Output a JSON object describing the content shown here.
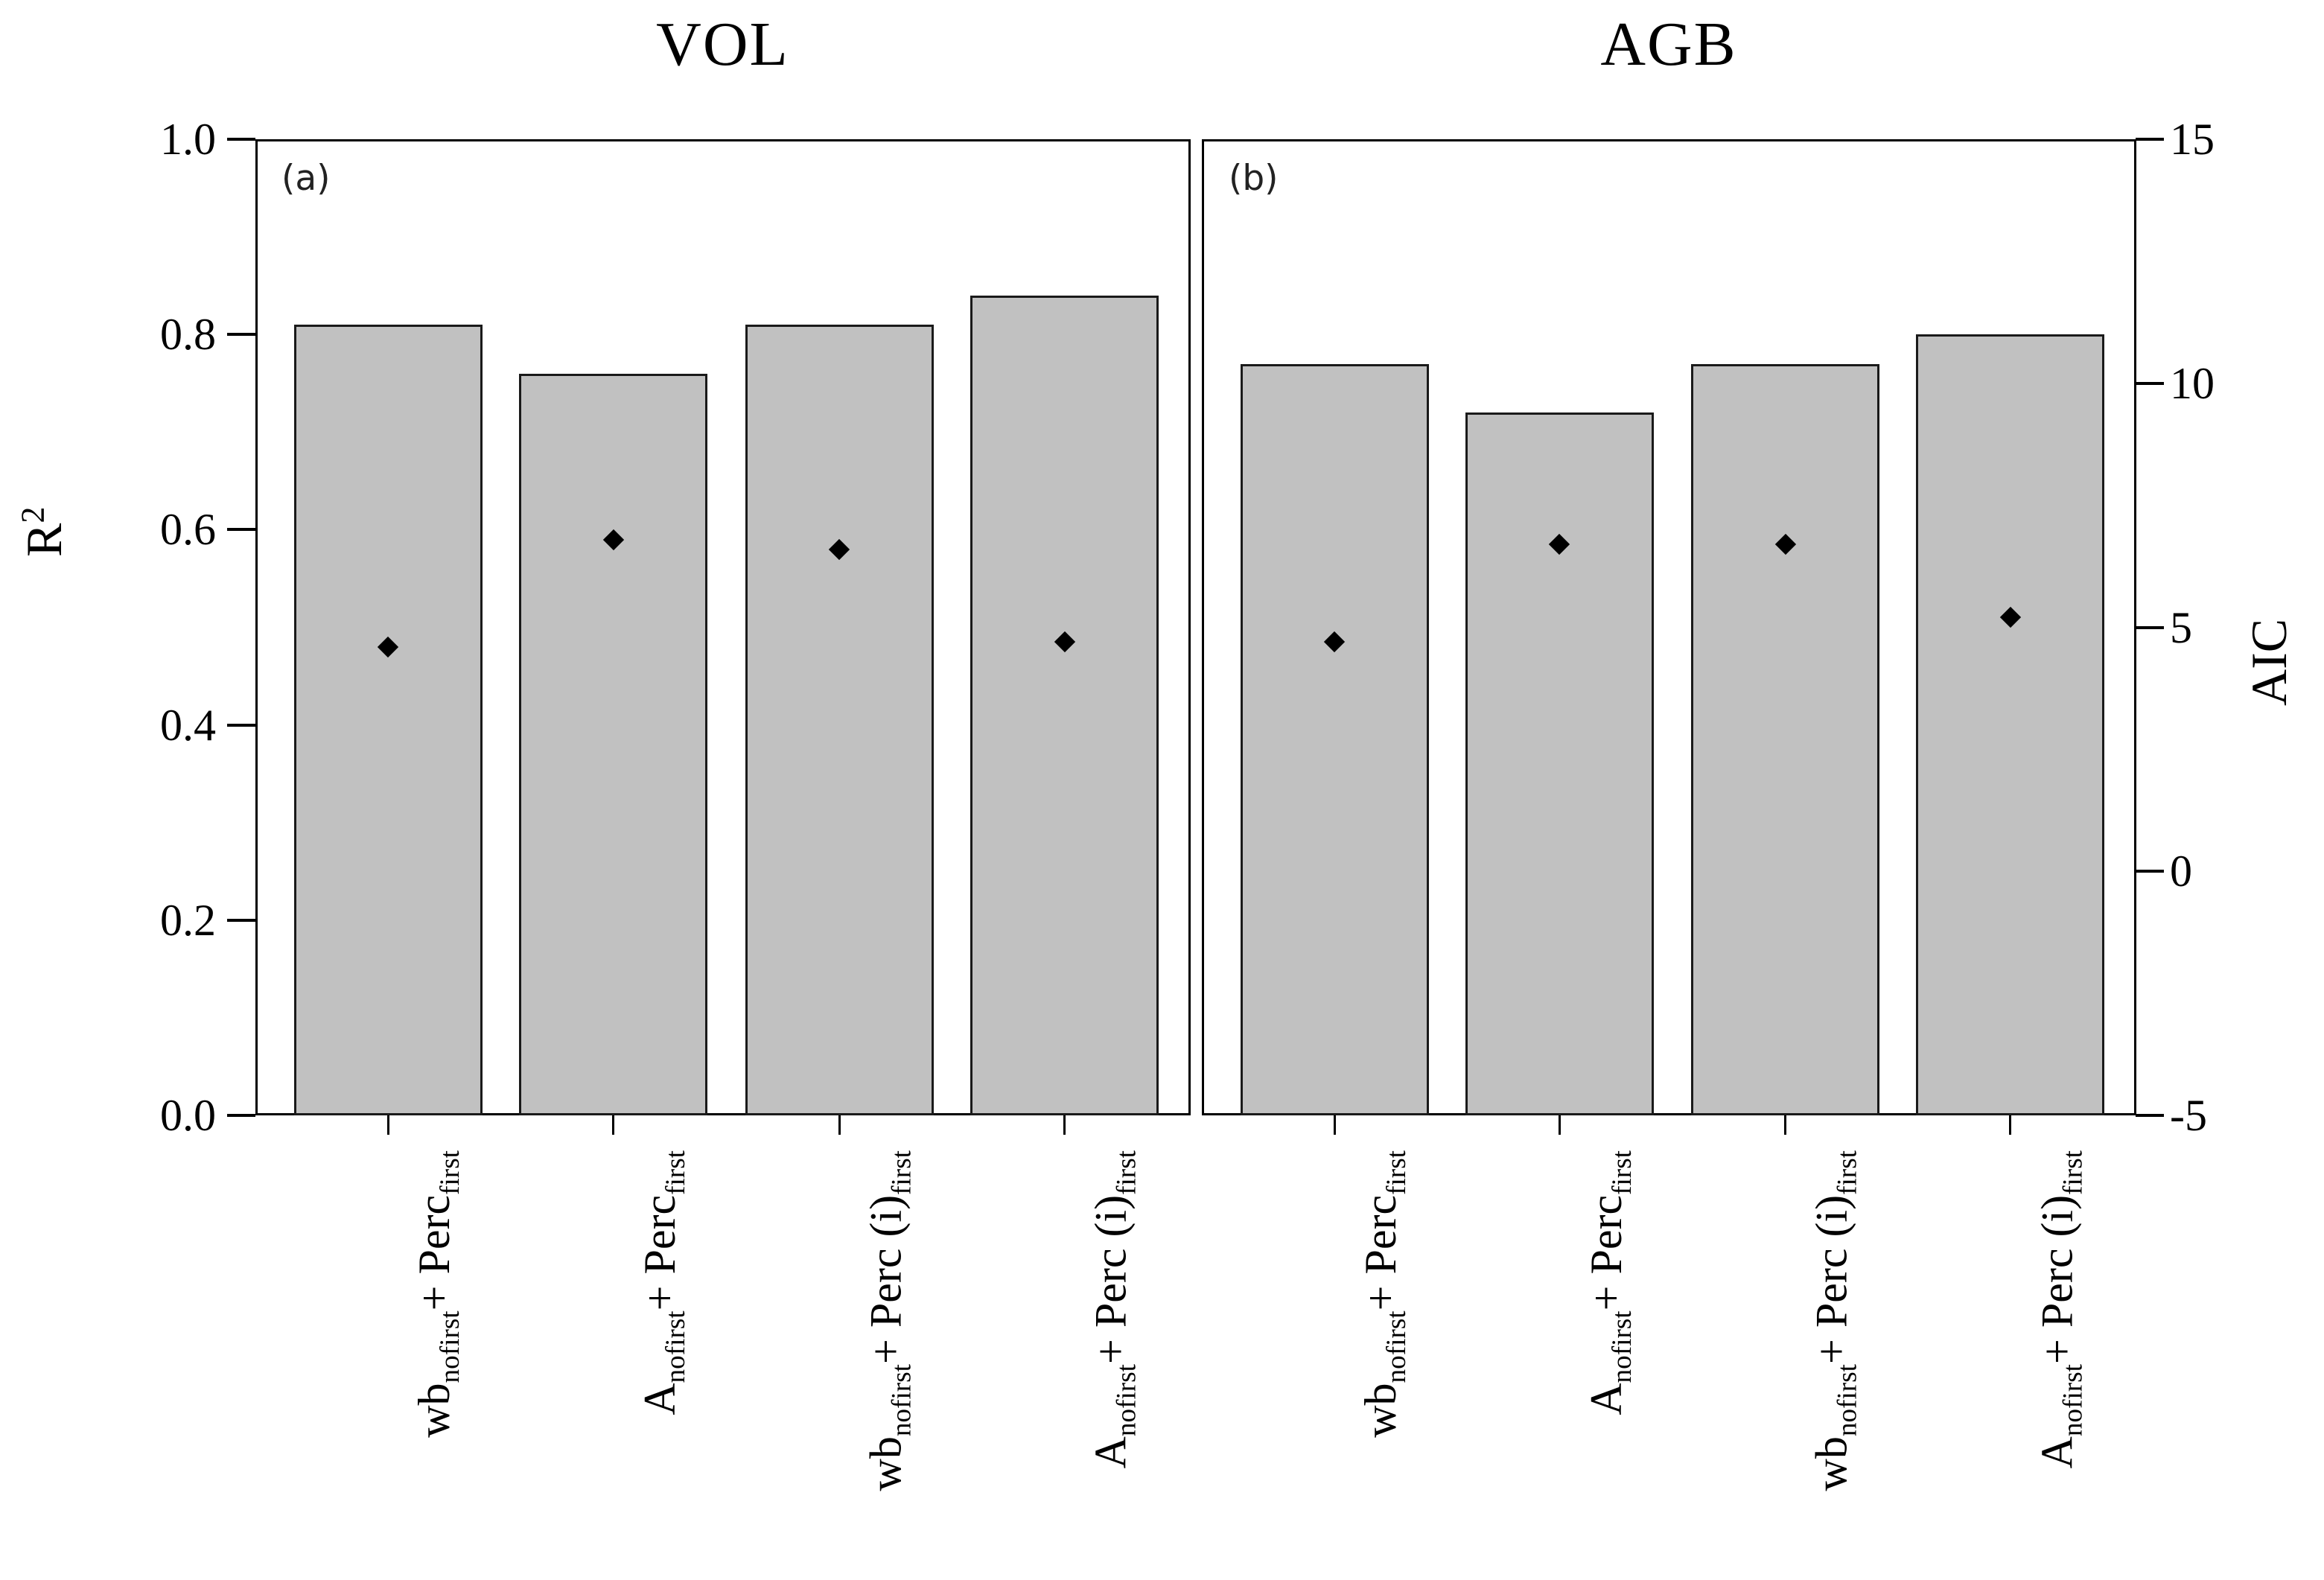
{
  "figure": {
    "background": "#ffffff",
    "bar_fill": "#c1c1c1",
    "bar_border": "#1a1a1a",
    "marker_color": "#000000",
    "axis_color": "#000000"
  },
  "axes": {
    "left": {
      "label": "R",
      "label_sup": "2",
      "range": [
        0.0,
        1.0
      ],
      "ticks": [
        "1.0",
        "0.8",
        "0.6",
        "0.4",
        "0.2",
        "0.0"
      ],
      "tick_values": [
        1.0,
        0.8,
        0.6,
        0.4,
        0.2,
        0.0
      ]
    },
    "right": {
      "label": "AIC",
      "range": [
        -5,
        15
      ],
      "ticks": [
        "15",
        "10",
        "5",
        "0",
        "-5"
      ],
      "tick_values": [
        15,
        10,
        5,
        0,
        -5
      ]
    }
  },
  "categories": [
    {
      "base": "wb",
      "base_sub": "nofirst",
      "rest": "+ Perc",
      "rest_sub": "first",
      "text": "wb_nofirst + Perc_first"
    },
    {
      "base": "A",
      "base_sub": "nofirst",
      "rest": "+ Perc",
      "rest_sub": "first",
      "text": "A_nofirst + Perc_first"
    },
    {
      "base": "wb",
      "base_sub": "nofirst",
      "rest": "+ Perc (i)",
      "rest_sub": "first",
      "text": "wb_nofirst + Perc (i)_first"
    },
    {
      "base": "A",
      "base_sub": "nofirst",
      "rest": "+ Perc (i)",
      "rest_sub": "first",
      "text": "A_nofirst + Perc (i)_first"
    }
  ],
  "chart_data": [
    {
      "type": "bar",
      "title": "VOL",
      "panel_label": "(a)",
      "categories": [
        "wb_nofirst + Perc_first",
        "A_nofirst + Perc_first",
        "wb_nofirst + Perc (i)_first",
        "A_nofirst + Perc (i)_first"
      ],
      "series": [
        {
          "name": "R2",
          "type": "bar",
          "axis": "left",
          "values": [
            0.81,
            0.76,
            0.81,
            0.84
          ]
        },
        {
          "name": "AIC",
          "type": "scatter",
          "marker": "diamond",
          "axis": "right",
          "values": [
            4.6,
            6.8,
            6.6,
            4.7
          ]
        }
      ],
      "ylabel": "R2",
      "y2label": "AIC",
      "ylim_left": [
        0.0,
        1.0
      ],
      "ylim_right": [
        -5,
        15
      ],
      "grid": false,
      "legend": false
    },
    {
      "type": "bar",
      "title": "AGB",
      "panel_label": "(b)",
      "categories": [
        "wb_nofirst + Perc_first",
        "A_nofirst + Perc_first",
        "wb_nofirst + Perc (i)_first",
        "A_nofirst + Perc (i)_first"
      ],
      "series": [
        {
          "name": "R2",
          "type": "bar",
          "axis": "left",
          "values": [
            0.77,
            0.72,
            0.77,
            0.8
          ]
        },
        {
          "name": "AIC",
          "type": "scatter",
          "marker": "diamond",
          "axis": "right",
          "values": [
            4.7,
            6.7,
            6.7,
            5.2
          ]
        }
      ],
      "ylabel": "R2",
      "y2label": "AIC",
      "ylim_left": [
        0.0,
        1.0
      ],
      "ylim_right": [
        -5,
        15
      ],
      "grid": false,
      "legend": false
    }
  ]
}
